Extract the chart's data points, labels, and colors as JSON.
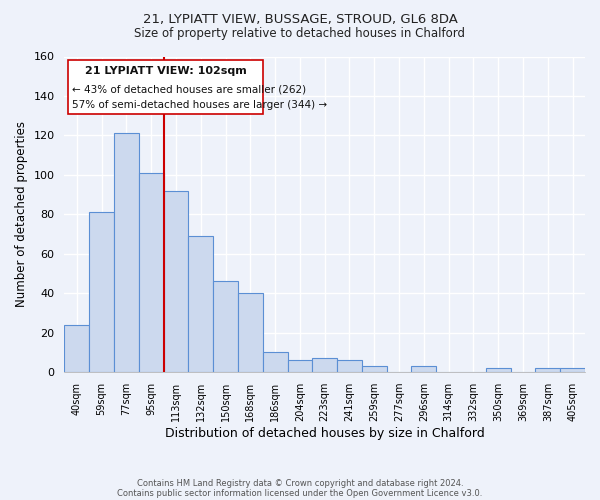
{
  "title1": "21, LYPIATT VIEW, BUSSAGE, STROUD, GL6 8DA",
  "title2": "Size of property relative to detached houses in Chalford",
  "xlabel": "Distribution of detached houses by size in Chalford",
  "ylabel": "Number of detached properties",
  "bar_labels": [
    "40sqm",
    "59sqm",
    "77sqm",
    "95sqm",
    "113sqm",
    "132sqm",
    "150sqm",
    "168sqm",
    "186sqm",
    "204sqm",
    "223sqm",
    "241sqm",
    "259sqm",
    "277sqm",
    "296sqm",
    "314sqm",
    "332sqm",
    "350sqm",
    "369sqm",
    "387sqm",
    "405sqm"
  ],
  "bar_heights": [
    24,
    81,
    121,
    101,
    92,
    69,
    46,
    40,
    10,
    6,
    7,
    6,
    3,
    0,
    3,
    0,
    0,
    2,
    0,
    2,
    2
  ],
  "bar_color": "#ccd9ee",
  "bar_edge_color": "#5b8fd4",
  "vline_x": 3.5,
  "vline_color": "#cc0000",
  "ylim": [
    0,
    160
  ],
  "yticks": [
    0,
    20,
    40,
    60,
    80,
    100,
    120,
    140,
    160
  ],
  "annotation_title": "21 LYPIATT VIEW: 102sqm",
  "annotation_line1": "← 43% of detached houses are smaller (262)",
  "annotation_line2": "57% of semi-detached houses are larger (344) →",
  "footer1": "Contains HM Land Registry data © Crown copyright and database right 2024.",
  "footer2": "Contains public sector information licensed under the Open Government Licence v3.0.",
  "background_color": "#eef2fa",
  "grid_color": "#d8dde8"
}
